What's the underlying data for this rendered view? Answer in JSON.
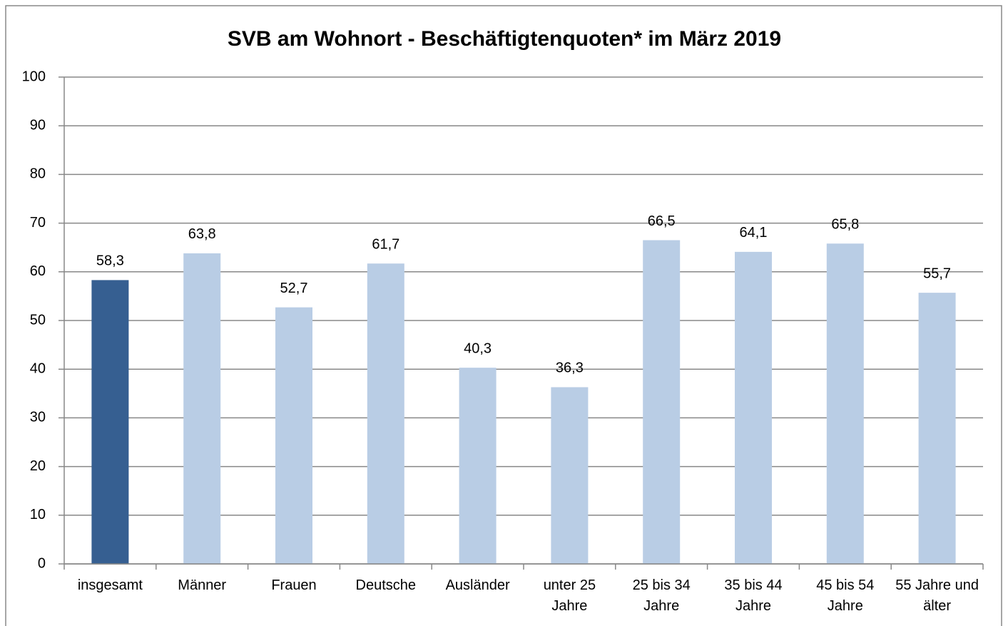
{
  "chart_data": {
    "type": "bar",
    "title": "SVB am Wohnort - Beschäftigtenquoten* im März 2019",
    "categories": [
      "insgesamt",
      "Männer",
      "Frauen",
      "Deutsche",
      "Ausländer",
      "unter 25 Jahre",
      "25 bis 34 Jahre",
      "35 bis 44 Jahre",
      "45 bis 54 Jahre",
      "55 Jahre und älter"
    ],
    "values": [
      58.3,
      63.8,
      52.7,
      61.7,
      40.3,
      36.3,
      66.5,
      64.1,
      65.8,
      55.7
    ],
    "value_labels": [
      "58,3",
      "63,8",
      "52,7",
      "61,7",
      "40,3",
      "36,3",
      "66,5",
      "64,1",
      "65,8",
      "55,7"
    ],
    "colors": [
      "#365f91",
      "#b9cde5",
      "#b9cde5",
      "#b9cde5",
      "#b9cde5",
      "#b9cde5",
      "#b9cde5",
      "#b9cde5",
      "#b9cde5",
      "#b9cde5"
    ],
    "ylim": [
      0,
      100
    ],
    "yticks": [
      0,
      10,
      20,
      30,
      40,
      50,
      60,
      70,
      80,
      90,
      100
    ],
    "grid": true
  }
}
